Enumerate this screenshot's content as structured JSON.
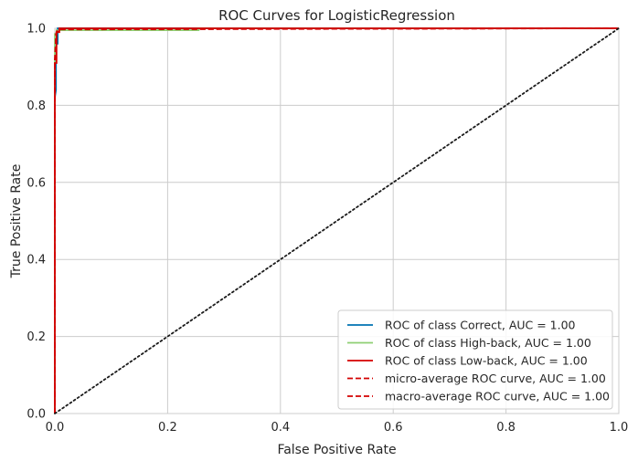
{
  "chart_data": {
    "type": "line",
    "title": "ROC Curves for LogisticRegression",
    "xlabel": "False Positive Rate",
    "ylabel": "True Positive Rate",
    "xlim": [
      0,
      1
    ],
    "ylim": [
      0,
      1
    ],
    "xticks": [
      "0.0",
      "0.2",
      "0.4",
      "0.6",
      "0.8",
      "1.0"
    ],
    "yticks": [
      "0.0",
      "0.2",
      "0.4",
      "0.6",
      "0.8",
      "1.0"
    ],
    "grid": true,
    "legend_position": "lower-right",
    "series": [
      {
        "name": "ROC of class Correct, AUC = 1.00",
        "color": "#0072B2",
        "dash": "solid",
        "x": [
          0,
          0,
          0.002,
          0.002,
          0.005,
          0.005,
          1
        ],
        "y": [
          0,
          0.82,
          0.84,
          0.96,
          0.96,
          1.0,
          1.0
        ]
      },
      {
        "name": "ROC of class High-back, AUC = 1.00",
        "color": "#8ecf73",
        "dash": "solid",
        "x": [
          0,
          0,
          0.003,
          0.003,
          0.255,
          0.255,
          1
        ],
        "y": [
          0,
          0.985,
          0.985,
          0.995,
          0.995,
          1.0,
          1.0
        ]
      },
      {
        "name": "ROC of class Low-back, AUC = 1.00",
        "color": "#d40000",
        "dash": "solid",
        "x": [
          0,
          0,
          0.003,
          0.003,
          0.008,
          0.008,
          1
        ],
        "y": [
          0,
          0.91,
          0.91,
          0.99,
          0.99,
          1.0,
          1.0
        ]
      },
      {
        "name": "micro-average ROC curve, AUC = 1.00",
        "color": "#d40000",
        "dash": "dashed",
        "x": [
          0,
          0,
          0.002,
          0.004,
          0.01,
          1
        ],
        "y": [
          0,
          0.9,
          0.985,
          0.993,
          0.998,
          1.0
        ]
      },
      {
        "name": "macro-average ROC curve, AUC = 1.00",
        "color": "#d40000",
        "dash": "dashed",
        "x": [
          0,
          0,
          0.003,
          0.008,
          1
        ],
        "y": [
          0,
          0.92,
          0.99,
          0.997,
          1.0
        ]
      },
      {
        "color": "#1a1a1a",
        "dash": "dotted",
        "x": [
          0,
          1
        ],
        "y": [
          0,
          1
        ]
      }
    ]
  }
}
